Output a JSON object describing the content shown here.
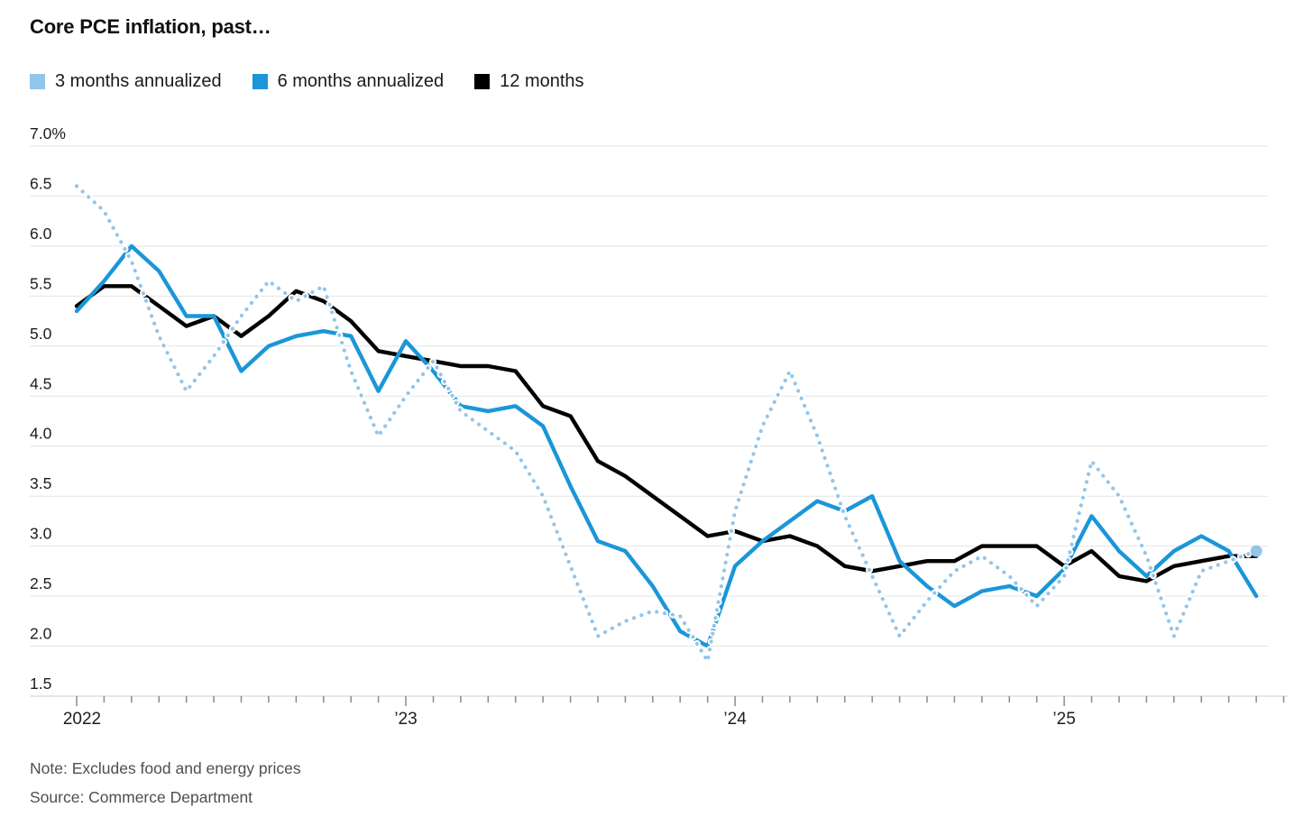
{
  "title": "Core PCE inflation, past…",
  "legend": [
    {
      "label": "3 months annualized",
      "color": "#92c5ea"
    },
    {
      "label": "6 months annualized",
      "color": "#1b96d8"
    },
    {
      "label": "12 months",
      "color": "#000000"
    }
  ],
  "note": "Note: Excludes food and energy prices",
  "source": "Source: Commerce Department",
  "chart_data": {
    "type": "line",
    "title": "Core PCE inflation, past…",
    "xlabel": "",
    "ylabel": "percent",
    "grid": "horizontal",
    "legend_position": "top",
    "y_axis": {
      "min": 1.5,
      "max": 7.0,
      "tick_step": 0.5,
      "tick_labels": [
        "7.0%",
        "6.5",
        "6.0",
        "5.5",
        "5.0",
        "4.5",
        "4.0",
        "3.5",
        "3.0",
        "2.5",
        "2.0",
        "1.5"
      ]
    },
    "x_year_ticks": [
      {
        "label": "2022",
        "month_index": 0
      },
      {
        "label": "’23",
        "month_index": 12
      },
      {
        "label": "’24",
        "month_index": 24
      },
      {
        "label": "’25",
        "month_index": 36
      }
    ],
    "months": [
      "2022-01",
      "2022-02",
      "2022-03",
      "2022-04",
      "2022-05",
      "2022-06",
      "2022-07",
      "2022-08",
      "2022-09",
      "2022-10",
      "2022-11",
      "2022-12",
      "2023-01",
      "2023-02",
      "2023-03",
      "2023-04",
      "2023-05",
      "2023-06",
      "2023-07",
      "2023-08",
      "2023-09",
      "2023-10",
      "2023-11",
      "2023-12",
      "2024-01",
      "2024-02",
      "2024-03",
      "2024-04",
      "2024-05",
      "2024-06",
      "2024-07",
      "2024-08",
      "2024-09",
      "2024-10",
      "2024-11",
      "2024-12",
      "2025-01",
      "2025-02",
      "2025-03",
      "2025-04",
      "2025-05",
      "2025-06",
      "2025-07",
      "2025-08"
    ],
    "series": [
      {
        "name": "12 months",
        "style": "solid",
        "color": "#000000",
        "values": [
          5.4,
          5.6,
          5.6,
          5.4,
          5.2,
          5.3,
          5.1,
          5.3,
          5.55,
          5.45,
          5.25,
          4.95,
          4.9,
          4.85,
          4.8,
          4.8,
          4.75,
          4.4,
          4.3,
          3.85,
          3.7,
          3.5,
          3.3,
          3.1,
          3.15,
          3.05,
          3.1,
          3.0,
          2.8,
          2.75,
          2.8,
          2.85,
          2.85,
          3.0,
          3.0,
          3.0,
          2.8,
          2.95,
          2.7,
          2.65,
          2.8,
          2.85,
          2.9,
          2.9
        ]
      },
      {
        "name": "6 months annualized",
        "style": "solid",
        "color": "#1b96d8",
        "values": [
          5.35,
          5.65,
          6.0,
          5.75,
          5.3,
          5.3,
          4.75,
          5.0,
          5.1,
          5.15,
          5.1,
          4.55,
          5.05,
          4.75,
          4.4,
          4.35,
          4.4,
          4.2,
          3.6,
          3.05,
          2.95,
          2.6,
          2.15,
          2.0,
          2.8,
          3.05,
          3.25,
          3.45,
          3.35,
          3.5,
          2.85,
          2.6,
          2.4,
          2.55,
          2.6,
          2.5,
          2.77,
          3.3,
          2.95,
          2.7,
          2.95,
          3.1,
          2.95,
          2.5
        ]
      },
      {
        "name": "3 months annualized",
        "style": "dotted",
        "color": "#92c5ea",
        "end_marker": true,
        "values": [
          6.6,
          6.35,
          5.85,
          5.1,
          4.55,
          4.9,
          5.3,
          5.65,
          5.45,
          5.6,
          4.75,
          4.1,
          4.5,
          4.85,
          4.35,
          4.15,
          3.95,
          3.5,
          2.8,
          2.1,
          2.25,
          2.35,
          2.3,
          1.85,
          3.35,
          4.2,
          4.75,
          4.1,
          3.3,
          2.7,
          2.1,
          2.45,
          2.75,
          2.9,
          2.7,
          2.4,
          2.7,
          3.85,
          3.5,
          2.9,
          2.1,
          2.75,
          2.85,
          2.95
        ]
      }
    ]
  }
}
